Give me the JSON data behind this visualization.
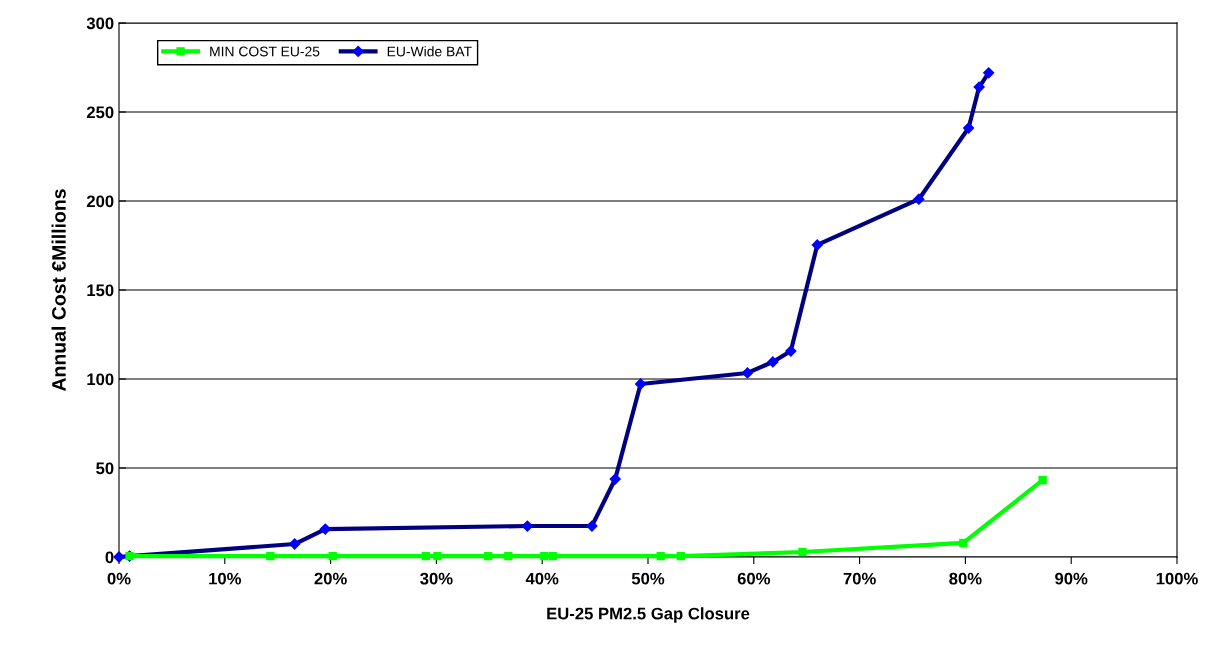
{
  "chart_data": {
    "type": "line",
    "xlabel": "EU-25 PM2.5 Gap Closure",
    "ylabel": "Annual Cost €Millions",
    "series": [
      {
        "name": "MIN COST EU-25",
        "color": "#00ff00",
        "marker": "square",
        "x": [
          1.0,
          14.3,
          20.2,
          29.0,
          30.1,
          34.9,
          36.8,
          40.2,
          41.0,
          51.2,
          53.1,
          64.6,
          79.8,
          87.3
        ],
        "values": [
          0.5,
          0.5,
          0.5,
          0.5,
          0.5,
          0.5,
          0.5,
          0.5,
          0.5,
          0.5,
          0.5,
          2.8,
          7.9,
          43.2
        ]
      },
      {
        "name": "EU-Wide BAT",
        "color": "#000080",
        "marker": "diamond",
        "x": [
          0,
          1.0,
          16.6,
          19.5,
          38.6,
          44.7,
          46.9,
          49.3,
          59.4,
          61.8,
          63.5,
          66.0,
          75.6,
          80.3,
          81.3,
          82.2
        ],
        "values": [
          0,
          0.5,
          7.3,
          15.7,
          17.4,
          17.4,
          43.8,
          97.2,
          103.4,
          109.6,
          115.7,
          175.3,
          201,
          241,
          264,
          272
        ]
      }
    ],
    "xlim": [
      0,
      100
    ],
    "xticks": [
      {
        "value": 0,
        "label": "0%"
      },
      {
        "value": 10,
        "label": "10%"
      },
      {
        "value": 20,
        "label": "20%"
      },
      {
        "value": 30,
        "label": "30%"
      },
      {
        "value": 40,
        "label": "40%"
      },
      {
        "value": 50,
        "label": "50%"
      },
      {
        "value": 60,
        "label": "60%"
      },
      {
        "value": 70,
        "label": "70%"
      },
      {
        "value": 80,
        "label": "80%"
      },
      {
        "value": 90,
        "label": "90%"
      },
      {
        "value": 100,
        "label": "100%"
      }
    ],
    "ylim": [
      0,
      300
    ],
    "yticks": [
      0,
      50,
      100,
      150,
      200,
      250,
      300
    ],
    "grid": "y",
    "legend": "top left",
    "line_style": "solid"
  }
}
